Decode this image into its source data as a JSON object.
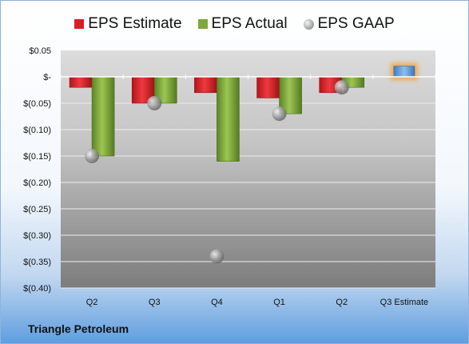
{
  "chart_data": {
    "type": "bar",
    "categories": [
      "Q2",
      "Q3",
      "Q4",
      "Q1",
      "Q2",
      "Q3 Estimate"
    ],
    "series": [
      {
        "name": "EPS Estimate",
        "values": [
          -0.02,
          -0.05,
          -0.03,
          -0.04,
          -0.03,
          null
        ],
        "color": "#d81e24"
      },
      {
        "name": "EPS Actual",
        "values": [
          -0.15,
          -0.05,
          -0.16,
          -0.07,
          -0.02,
          null
        ],
        "color": "#7ea83a"
      },
      {
        "name": "EPS GAAP",
        "type": "scatter",
        "values": [
          -0.15,
          -0.05,
          -0.34,
          -0.07,
          -0.02,
          null
        ],
        "color": "#9a9a9a"
      }
    ],
    "estimate_bar": {
      "category": "Q3 Estimate",
      "value": 0.02,
      "color": "#5b9be0",
      "glow": "#f4a23c"
    },
    "yticks": [
      {
        "value": 0.05,
        "label": "$0.05"
      },
      {
        "value": 0,
        "label": "$-"
      },
      {
        "value": -0.05,
        "label": "$(0.05)"
      },
      {
        "value": -0.1,
        "label": "$(0.10)"
      },
      {
        "value": -0.15,
        "label": "$(0.15)"
      },
      {
        "value": -0.2,
        "label": "$(0.20)"
      },
      {
        "value": -0.25,
        "label": "$(0.25)"
      },
      {
        "value": -0.3,
        "label": "$(0.30)"
      },
      {
        "value": -0.35,
        "label": "$(0.35)"
      },
      {
        "value": -0.4,
        "label": "$(0.40)"
      }
    ],
    "ylim": [
      -0.4,
      0.05
    ],
    "grid": true,
    "legend_position": "top-center"
  },
  "company": "Triangle Petroleum"
}
